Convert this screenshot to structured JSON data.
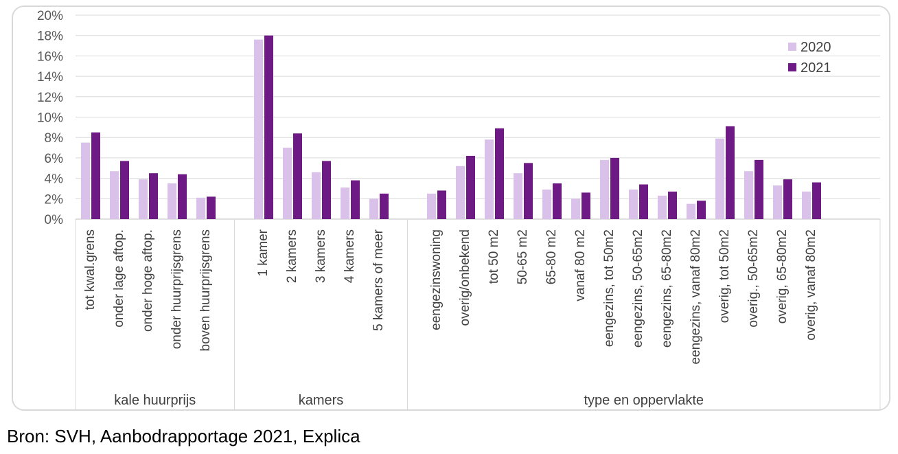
{
  "chart_data": {
    "type": "bar",
    "title": "",
    "xlabel": "",
    "ylabel": "",
    "ylim": [
      0,
      20
    ],
    "y_ticks": [
      "0%",
      "2%",
      "4%",
      "6%",
      "8%",
      "10%",
      "12%",
      "14%",
      "16%",
      "18%",
      "20%"
    ],
    "grid": true,
    "legend_position": "top-right",
    "categories": [
      "tot kwal.grens",
      "onder lage aftop.",
      "onder hoge aftop.",
      "onder huurprijsgrens",
      "boven huurprijsgrens",
      "1 kamer",
      "2 kamers",
      "3 kamers",
      "4 kamers",
      "5 kamers of meer",
      "eengezinswoning",
      "overig/onbekend",
      "tot 50 m2",
      "50-65 m2",
      "65-80 m2",
      "vanaf 80 m2",
      "eengezins, tot 50m2",
      "eengezins, 50-65m2",
      "eengezins, 65-80m2",
      "eengezins, vanaf 80m2",
      "overig, tot 50m2",
      "overig., 50-65m2",
      "overig, 65-80m2",
      "overig, vanaf 80m2"
    ],
    "groups": [
      {
        "label": "kale huurprijs",
        "count": 5
      },
      {
        "label": "kamers",
        "count": 5
      },
      {
        "label": "type en oppervlakte",
        "count": 14
      }
    ],
    "series": [
      {
        "name": "2020",
        "color": "#d9c1ea",
        "values": [
          7.5,
          4.7,
          3.9,
          3.5,
          2.1,
          17.6,
          7.0,
          4.6,
          3.1,
          2.0,
          2.5,
          5.2,
          7.8,
          4.5,
          2.9,
          2.0,
          5.8,
          2.9,
          2.3,
          1.5,
          7.9,
          4.7,
          3.3,
          2.7
        ]
      },
      {
        "name": "2021",
        "color": "#6e1a84",
        "values": [
          8.5,
          5.7,
          4.5,
          4.4,
          2.2,
          18.0,
          8.4,
          5.7,
          3.8,
          2.5,
          2.8,
          6.2,
          8.9,
          5.5,
          3.5,
          2.6,
          6.0,
          3.4,
          2.7,
          1.8,
          9.1,
          5.8,
          3.9,
          3.6
        ]
      }
    ]
  },
  "source_note": "Bron: SVH, Aanbodrapportage 2021, Explica"
}
